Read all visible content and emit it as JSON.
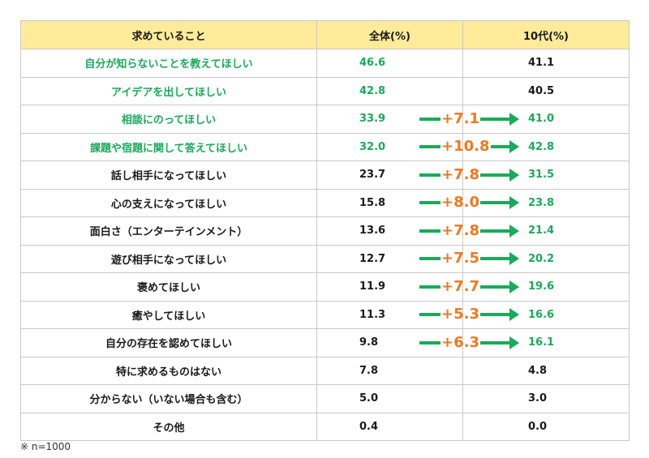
{
  "table": {
    "headers": [
      "求めていること",
      "全体(%)",
      "10代(%)"
    ],
    "rows": [
      {
        "item": "自分が知らないことを教えてほしい",
        "overall": "46.6",
        "teens": "41.1",
        "highlight": true,
        "delta": null
      },
      {
        "item": "アイデアを出してほしい",
        "overall": "42.8",
        "teens": "40.5",
        "highlight": true,
        "delta": null
      },
      {
        "item": "相談にのってほしい",
        "overall": "33.9",
        "teens": "41.0",
        "highlight": true,
        "delta": "+7.1"
      },
      {
        "item": "課題や宿題に関して答えてほしい",
        "overall": "32.0",
        "teens": "42.8",
        "highlight": true,
        "delta": "+10.8"
      },
      {
        "item": "話し相手になってほしい",
        "overall": "23.7",
        "teens": "31.5",
        "highlight": false,
        "delta": "+7.8"
      },
      {
        "item": "心の支えになってほしい",
        "overall": "15.8",
        "teens": "23.8",
        "highlight": false,
        "delta": "+8.0"
      },
      {
        "item": "面白さ（エンターテインメント）",
        "overall": "13.6",
        "teens": "21.4",
        "highlight": false,
        "delta": "+7.8"
      },
      {
        "item": "遊び相手になってほしい",
        "overall": "12.7",
        "teens": "20.2",
        "highlight": false,
        "delta": "+7.5"
      },
      {
        "item": "褒めてほしい",
        "overall": "11.9",
        "teens": "19.6",
        "highlight": false,
        "delta": "+7.7"
      },
      {
        "item": "癒やしてほしい",
        "overall": "11.3",
        "teens": "16.6",
        "highlight": false,
        "delta": "+5.3"
      },
      {
        "item": "自分の存在を認めてほしい",
        "overall": "9.8",
        "teens": "16.1",
        "highlight": false,
        "delta": "+6.3"
      },
      {
        "item": "特に求めるものはない",
        "overall": "7.8",
        "teens": "4.8",
        "highlight": false,
        "delta": null
      },
      {
        "item": "分からない（いない場合も含む）",
        "overall": "5.0",
        "teens": "3.0",
        "highlight": false,
        "delta": null
      },
      {
        "item": "その他",
        "overall": "0.4",
        "teens": "0.0",
        "highlight": false,
        "delta": null
      }
    ]
  },
  "footnote": "※ n=1000",
  "colors": {
    "header_bg": "#ffeb99",
    "green": "#1aaa5a",
    "orange": "#f07820",
    "border": "#c8c8c8"
  }
}
